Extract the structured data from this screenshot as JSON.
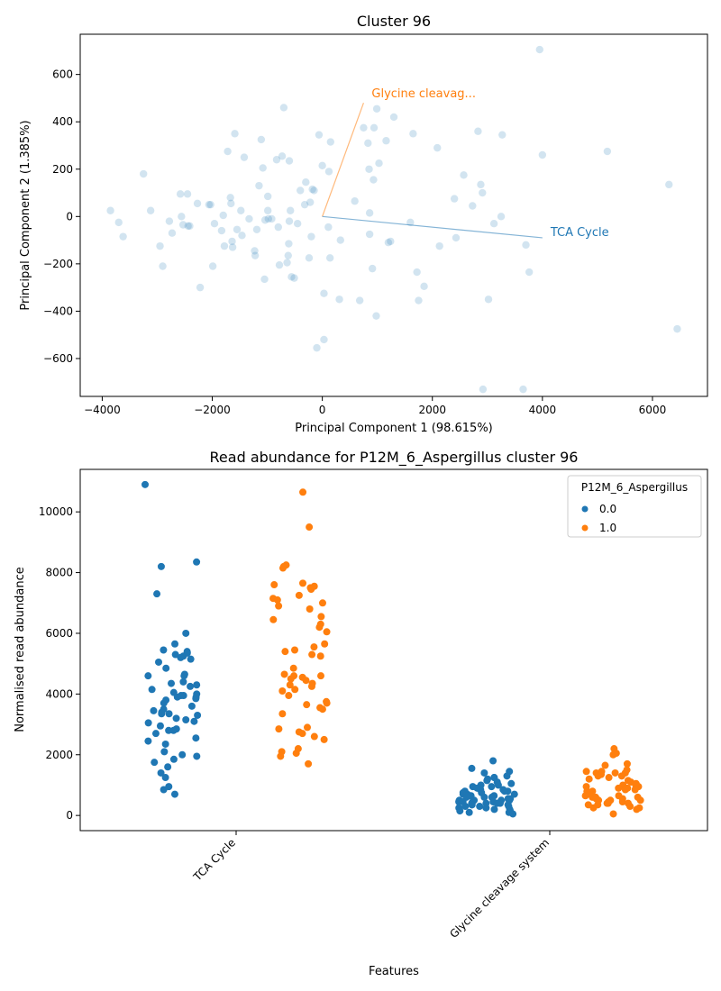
{
  "chart_data": [
    {
      "type": "scatter",
      "title": "Cluster 96",
      "xlabel": "Principal Component 1 (98.615%)",
      "ylabel": "Principal Component 2 (1.385%)",
      "xlim": [
        -4400,
        7000
      ],
      "ylim": [
        -760,
        770
      ],
      "xticks": [
        -4000,
        -2000,
        0,
        2000,
        4000,
        6000
      ],
      "yticks": [
        -600,
        -400,
        -200,
        0,
        200,
        400,
        600
      ],
      "xtick_labels": [
        "−4000",
        "−2000",
        "0",
        "2000",
        "4000",
        "6000"
      ],
      "ytick_labels": [
        "−600",
        "−400",
        "−200",
        "0",
        "200",
        "400",
        "600"
      ],
      "point_color": "#1f77b4",
      "points": [
        [
          -3850,
          25
        ],
        [
          -3700,
          -25
        ],
        [
          -3620,
          -85
        ],
        [
          -3250,
          180
        ],
        [
          -3120,
          25
        ],
        [
          -2950,
          -125
        ],
        [
          -2900,
          -210
        ],
        [
          -2780,
          -20
        ],
        [
          -2730,
          -70
        ],
        [
          -2580,
          95
        ],
        [
          -2560,
          0
        ],
        [
          -2530,
          -35
        ],
        [
          -2450,
          95
        ],
        [
          -2440,
          -40
        ],
        [
          -2410,
          -40
        ],
        [
          -2270,
          55
        ],
        [
          -2220,
          -300
        ],
        [
          -2060,
          50
        ],
        [
          -2030,
          50
        ],
        [
          -1990,
          -210
        ],
        [
          -1960,
          -30
        ],
        [
          -1830,
          -60
        ],
        [
          -1800,
          5
        ],
        [
          -1780,
          -125
        ],
        [
          -1720,
          275
        ],
        [
          -1670,
          80
        ],
        [
          -1660,
          55
        ],
        [
          -1640,
          -105
        ],
        [
          -1630,
          -130
        ],
        [
          -1590,
          350
        ],
        [
          -1550,
          -55
        ],
        [
          -1480,
          25
        ],
        [
          -1460,
          -80
        ],
        [
          -1420,
          250
        ],
        [
          -1330,
          -10
        ],
        [
          -1230,
          -145
        ],
        [
          -1220,
          -165
        ],
        [
          -1190,
          -55
        ],
        [
          -1150,
          130
        ],
        [
          -1110,
          325
        ],
        [
          -1080,
          205
        ],
        [
          -1050,
          -265
        ],
        [
          -1040,
          -15
        ],
        [
          -990,
          85
        ],
        [
          -990,
          25
        ],
        [
          -980,
          -10
        ],
        [
          -920,
          -10
        ],
        [
          -830,
          240
        ],
        [
          -800,
          -45
        ],
        [
          -780,
          -205
        ],
        [
          -730,
          255
        ],
        [
          -700,
          460
        ],
        [
          -640,
          -195
        ],
        [
          -620,
          -165
        ],
        [
          -610,
          -115
        ],
        [
          -600,
          -20
        ],
        [
          -600,
          235
        ],
        [
          -580,
          25
        ],
        [
          -560,
          -255
        ],
        [
          -510,
          -260
        ],
        [
          -450,
          -30
        ],
        [
          -400,
          110
        ],
        [
          -320,
          50
        ],
        [
          -300,
          145
        ],
        [
          -240,
          -175
        ],
        [
          -220,
          60
        ],
        [
          -200,
          -85
        ],
        [
          -180,
          115
        ],
        [
          -150,
          110
        ],
        [
          -100,
          -555
        ],
        [
          -60,
          345
        ],
        [
          0,
          215
        ],
        [
          30,
          -325
        ],
        [
          30,
          -520
        ],
        [
          110,
          -45
        ],
        [
          120,
          190
        ],
        [
          140,
          -175
        ],
        [
          150,
          315
        ],
        [
          310,
          -350
        ],
        [
          330,
          -100
        ],
        [
          590,
          65
        ],
        [
          680,
          -355
        ],
        [
          750,
          375
        ],
        [
          830,
          310
        ],
        [
          850,
          200
        ],
        [
          860,
          15
        ],
        [
          860,
          -75
        ],
        [
          910,
          -220
        ],
        [
          930,
          155
        ],
        [
          940,
          375
        ],
        [
          980,
          -420
        ],
        [
          990,
          455
        ],
        [
          1030,
          225
        ],
        [
          1160,
          320
        ],
        [
          1200,
          -110
        ],
        [
          1240,
          -105
        ],
        [
          1300,
          420
        ],
        [
          1600,
          -25
        ],
        [
          1650,
          350
        ],
        [
          1720,
          -235
        ],
        [
          1750,
          -355
        ],
        [
          1850,
          -295
        ],
        [
          2090,
          290
        ],
        [
          2130,
          -125
        ],
        [
          2400,
          75
        ],
        [
          2430,
          -90
        ],
        [
          2570,
          175
        ],
        [
          2730,
          45
        ],
        [
          2830,
          360
        ],
        [
          2880,
          135
        ],
        [
          2910,
          100
        ],
        [
          2920,
          -730
        ],
        [
          3020,
          -350
        ],
        [
          3120,
          -30
        ],
        [
          3250,
          0
        ],
        [
          3270,
          345
        ],
        [
          3650,
          -730
        ],
        [
          3700,
          -120
        ],
        [
          3760,
          -235
        ],
        [
          3950,
          705
        ],
        [
          4000,
          260
        ],
        [
          5180,
          275
        ],
        [
          6300,
          135
        ],
        [
          6450,
          -475
        ]
      ],
      "vectors": [
        {
          "label": "Glycine cleavag...",
          "x": 750,
          "y": 480,
          "color": "#ff7f0e"
        },
        {
          "label": "TCA Cycle",
          "x": 4000,
          "y": -90,
          "color": "#1f77b4"
        }
      ]
    },
    {
      "type": "strip",
      "title": "Read abundance for P12M_6_Aspergillus cluster 96",
      "xlabel": "Features",
      "ylabel": "Normalised read abundance",
      "categories": [
        "TCA Cycle",
        "Glycine cleavage system"
      ],
      "ylim": [
        -500,
        11400
      ],
      "yticks": [
        0,
        2000,
        4000,
        6000,
        8000,
        10000
      ],
      "ytick_labels": [
        "0",
        "2000",
        "4000",
        "6000",
        "8000",
        "10000"
      ],
      "legend": {
        "title": "P12M_6_Aspergillus",
        "position": "top-right"
      },
      "series": [
        {
          "name": "0.0",
          "color": "#1f77b4",
          "values": [
            [
              10900,
              8350,
              8200,
              7300,
              6000,
              5650,
              5450,
              5400,
              5350,
              5300,
              5250,
              5200,
              5150,
              5050,
              4850,
              4650,
              4600,
              4600,
              4400,
              4350,
              4300,
              4250,
              4150,
              4050,
              4000,
              3950,
              3950,
              3900,
              3900,
              3850,
              3800,
              3700,
              3600,
              3500,
              3450,
              3400,
              3350,
              3350,
              3300,
              3200,
              3150,
              3100,
              3050,
              2950,
              2850,
              2800,
              2800,
              2700,
              2550,
              2450,
              2350,
              2100,
              2000,
              1950,
              1850,
              1750,
              1600,
              1400,
              1250,
              950,
              850,
              700
            ],
            [
              1800,
              1550,
              1450,
              1400,
              1300,
              1250,
              1250,
              1200,
              1150,
              1100,
              1050,
              1000,
              1000,
              950,
              950,
              900,
              900,
              850,
              850,
              800,
              800,
              800,
              750,
              750,
              700,
              700,
              700,
              650,
              650,
              650,
              600,
              600,
              600,
              550,
              550,
              550,
              550,
              500,
              500,
              500,
              500,
              450,
              450,
              450,
              450,
              400,
              400,
              400,
              400,
              350,
              350,
              350,
              300,
              300,
              300,
              250,
              250,
              200,
              200,
              150,
              150,
              100,
              100,
              50
            ]
          ]
        },
        {
          "name": "1.0",
          "color": "#ff7f0e",
          "values": [
            [
              10650,
              9500,
              8250,
              8200,
              8150,
              7650,
              7600,
              7550,
              7500,
              7450,
              7250,
              7150,
              7100,
              7000,
              6900,
              6800,
              6550,
              6450,
              6300,
              6200,
              6050,
              5650,
              5550,
              5450,
              5400,
              5300,
              5250,
              4850,
              4650,
              4600,
              4600,
              4550,
              4500,
              4450,
              4350,
              4300,
              4250,
              4150,
              4100,
              3950,
              3750,
              3700,
              3650,
              3550,
              3500,
              3350,
              2900,
              2850,
              2750,
              2700,
              2600,
              2500,
              2200,
              2100,
              2050,
              1950,
              1700
            ],
            [
              2200,
              2050,
              2000,
              1700,
              1650,
              1500,
              1450,
              1450,
              1400,
              1400,
              1400,
              1350,
              1300,
              1300,
              1250,
              1200,
              1150,
              1100,
              1050,
              1000,
              1000,
              950,
              950,
              900,
              900,
              850,
              850,
              800,
              800,
              750,
              700,
              700,
              650,
              650,
              600,
              600,
              600,
              550,
              550,
              500,
              500,
              500,
              450,
              450,
              400,
              400,
              400,
              350,
              350,
              300,
              250,
              250,
              200,
              50
            ]
          ]
        }
      ]
    }
  ]
}
